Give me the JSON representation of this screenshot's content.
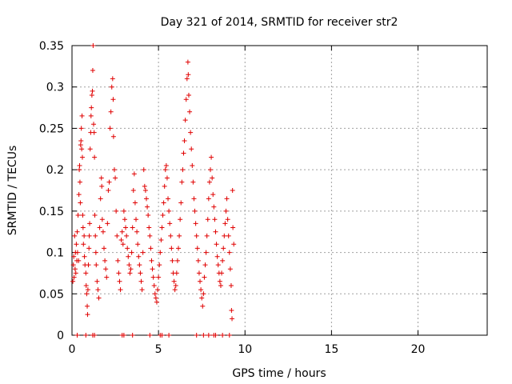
{
  "chart_data": {
    "type": "scatter",
    "title": "Day 321 of 2014, SRMTID for receiver str2",
    "xlabel": "GPS time / hours",
    "ylabel": "SRMTID / TECUs",
    "xlim": [
      0,
      24
    ],
    "ylim": [
      0,
      0.35
    ],
    "xticks": [
      0,
      5,
      10,
      15,
      20
    ],
    "yticks": [
      0,
      0.05,
      0.1,
      0.15,
      0.2,
      0.25,
      0.3,
      0.35
    ],
    "grid": true,
    "marker": "+",
    "color": "#e00000",
    "series": [
      {
        "points": [
          [
            0.05,
            0.065
          ],
          [
            0.08,
            0.085
          ],
          [
            0.1,
            0.095
          ],
          [
            0.12,
            0.07
          ],
          [
            0.15,
            0.12
          ],
          [
            0.18,
            0.08
          ],
          [
            0.2,
            0.1
          ],
          [
            0.22,
            0.075
          ],
          [
            0.25,
            0.11
          ],
          [
            0.28,
            0.09
          ],
          [
            0.3,
            0.125
          ],
          [
            0.32,
            0.1
          ],
          [
            0.35,
            0.145
          ],
          [
            0.38,
            0.09
          ],
          [
            0.4,
            0.17
          ],
          [
            0.42,
            0.2
          ],
          [
            0.44,
            0.205
          ],
          [
            0.46,
            0.185
          ],
          [
            0.48,
            0.16
          ],
          [
            0.5,
            0.23
          ],
          [
            0.52,
            0.235
          ],
          [
            0.54,
            0.25
          ],
          [
            0.56,
            0.225
          ],
          [
            0.58,
            0.265
          ],
          [
            0.6,
            0.215
          ],
          [
            0.62,
            0.145
          ],
          [
            0.64,
            0.13
          ],
          [
            0.66,
            0.11
          ],
          [
            0.7,
            0.12
          ],
          [
            0.72,
            0.095
          ],
          [
            0.75,
            0.085
          ],
          [
            0.8,
            0.075
          ],
          [
            0.82,
            0.06
          ],
          [
            0.85,
            0.05
          ],
          [
            0.88,
            0.035
          ],
          [
            0.9,
            0.025
          ],
          [
            0.92,
            0.055
          ],
          [
            0.95,
            0.085
          ],
          [
            0.98,
            0.105
          ],
          [
            1.0,
            0.12
          ],
          [
            1.02,
            0.135
          ],
          [
            1.05,
            0.225
          ],
          [
            1.08,
            0.245
          ],
          [
            1.1,
            0.265
          ],
          [
            1.12,
            0.275
          ],
          [
            1.15,
            0.29
          ],
          [
            1.18,
            0.295
          ],
          [
            1.2,
            0.32
          ],
          [
            1.22,
            0.35
          ],
          [
            1.25,
            0.255
          ],
          [
            1.28,
            0.245
          ],
          [
            1.3,
            0.215
          ],
          [
            1.32,
            0.145
          ],
          [
            1.35,
            0.12
          ],
          [
            1.38,
            0.1
          ],
          [
            1.4,
            0.085
          ],
          [
            1.45,
            0.065
          ],
          [
            1.5,
            0.055
          ],
          [
            1.55,
            0.045
          ],
          [
            1.6,
            0.13
          ],
          [
            1.65,
            0.165
          ],
          [
            1.7,
            0.19
          ],
          [
            1.72,
            0.18
          ],
          [
            1.75,
            0.14
          ],
          [
            1.8,
            0.125
          ],
          [
            1.85,
            0.105
          ],
          [
            1.9,
            0.09
          ],
          [
            1.95,
            0.08
          ],
          [
            2.0,
            0.07
          ],
          [
            2.05,
            0.135
          ],
          [
            2.1,
            0.175
          ],
          [
            2.15,
            0.185
          ],
          [
            2.2,
            0.25
          ],
          [
            2.25,
            0.27
          ],
          [
            2.3,
            0.3
          ],
          [
            2.35,
            0.31
          ],
          [
            2.38,
            0.285
          ],
          [
            2.4,
            0.24
          ],
          [
            2.45,
            0.2
          ],
          [
            2.5,
            0.19
          ],
          [
            2.55,
            0.15
          ],
          [
            2.6,
            0.12
          ],
          [
            2.65,
            0.09
          ],
          [
            2.7,
            0.075
          ],
          [
            2.75,
            0.065
          ],
          [
            2.8,
            0.055
          ],
          [
            2.85,
            0.115
          ],
          [
            2.9,
            0.125
          ],
          [
            2.95,
            0.11
          ],
          [
            3.0,
            0.15
          ],
          [
            3.05,
            0.14
          ],
          [
            3.1,
            0.13
          ],
          [
            3.15,
            0.12
          ],
          [
            3.2,
            0.105
          ],
          [
            3.25,
            0.095
          ],
          [
            3.3,
            0.085
          ],
          [
            3.35,
            0.075
          ],
          [
            3.4,
            0.08
          ],
          [
            3.45,
            0.1
          ],
          [
            3.5,
            0.13
          ],
          [
            3.55,
            0.175
          ],
          [
            3.6,
            0.195
          ],
          [
            3.65,
            0.16
          ],
          [
            3.7,
            0.14
          ],
          [
            3.75,
            0.125
          ],
          [
            3.8,
            0.11
          ],
          [
            3.85,
            0.095
          ],
          [
            3.9,
            0.085
          ],
          [
            3.95,
            0.075
          ],
          [
            4.0,
            0.065
          ],
          [
            4.05,
            0.055
          ],
          [
            4.1,
            0.1
          ],
          [
            4.15,
            0.2
          ],
          [
            4.2,
            0.18
          ],
          [
            4.25,
            0.175
          ],
          [
            4.3,
            0.165
          ],
          [
            4.35,
            0.155
          ],
          [
            4.4,
            0.145
          ],
          [
            4.45,
            0.13
          ],
          [
            4.5,
            0.12
          ],
          [
            4.55,
            0.105
          ],
          [
            4.6,
            0.09
          ],
          [
            4.65,
            0.08
          ],
          [
            4.7,
            0.07
          ],
          [
            4.75,
            0.06
          ],
          [
            4.8,
            0.05
          ],
          [
            4.85,
            0.045
          ],
          [
            4.9,
            0.04
          ],
          [
            4.95,
            0.055
          ],
          [
            5.0,
            0.07
          ],
          [
            5.05,
            0.085
          ],
          [
            5.1,
            0.1
          ],
          [
            5.15,
            0.115
          ],
          [
            5.2,
            0.13
          ],
          [
            5.25,
            0.145
          ],
          [
            5.3,
            0.16
          ],
          [
            5.35,
            0.18
          ],
          [
            5.4,
            0.2
          ],
          [
            5.45,
            0.205
          ],
          [
            5.5,
            0.19
          ],
          [
            5.55,
            0.165
          ],
          [
            5.6,
            0.15
          ],
          [
            5.65,
            0.135
          ],
          [
            5.7,
            0.12
          ],
          [
            5.75,
            0.105
          ],
          [
            5.8,
            0.09
          ],
          [
            5.85,
            0.075
          ],
          [
            5.9,
            0.065
          ],
          [
            5.95,
            0.055
          ],
          [
            6.0,
            0.06
          ],
          [
            6.05,
            0.075
          ],
          [
            6.1,
            0.09
          ],
          [
            6.15,
            0.105
          ],
          [
            6.2,
            0.12
          ],
          [
            6.25,
            0.14
          ],
          [
            6.3,
            0.16
          ],
          [
            6.35,
            0.185
          ],
          [
            6.4,
            0.2
          ],
          [
            6.45,
            0.22
          ],
          [
            6.5,
            0.235
          ],
          [
            6.55,
            0.26
          ],
          [
            6.6,
            0.285
          ],
          [
            6.65,
            0.31
          ],
          [
            6.7,
            0.33
          ],
          [
            6.72,
            0.315
          ],
          [
            6.75,
            0.29
          ],
          [
            6.8,
            0.27
          ],
          [
            6.85,
            0.245
          ],
          [
            6.9,
            0.225
          ],
          [
            6.95,
            0.205
          ],
          [
            7.0,
            0.185
          ],
          [
            7.05,
            0.165
          ],
          [
            7.1,
            0.15
          ],
          [
            7.15,
            0.135
          ],
          [
            7.2,
            0.12
          ],
          [
            7.25,
            0.105
          ],
          [
            7.3,
            0.09
          ],
          [
            7.35,
            0.075
          ],
          [
            7.4,
            0.065
          ],
          [
            7.45,
            0.055
          ],
          [
            7.5,
            0.045
          ],
          [
            7.55,
            0.035
          ],
          [
            7.6,
            0.05
          ],
          [
            7.65,
            0.07
          ],
          [
            7.7,
            0.085
          ],
          [
            7.75,
            0.1
          ],
          [
            7.8,
            0.12
          ],
          [
            7.85,
            0.14
          ],
          [
            7.9,
            0.165
          ],
          [
            7.95,
            0.185
          ],
          [
            8.0,
            0.2
          ],
          [
            8.05,
            0.215
          ],
          [
            8.1,
            0.19
          ],
          [
            8.15,
            0.17
          ],
          [
            8.2,
            0.155
          ],
          [
            8.25,
            0.14
          ],
          [
            8.3,
            0.125
          ],
          [
            8.35,
            0.11
          ],
          [
            8.4,
            0.095
          ],
          [
            8.45,
            0.085
          ],
          [
            8.5,
            0.075
          ],
          [
            8.55,
            0.065
          ],
          [
            8.6,
            0.06
          ],
          [
            8.65,
            0.075
          ],
          [
            8.7,
            0.09
          ],
          [
            8.75,
            0.105
          ],
          [
            8.8,
            0.12
          ],
          [
            8.85,
            0.135
          ],
          [
            8.9,
            0.15
          ],
          [
            8.95,
            0.165
          ],
          [
            9.0,
            0.14
          ],
          [
            9.05,
            0.12
          ],
          [
            9.1,
            0.1
          ],
          [
            9.15,
            0.08
          ],
          [
            9.2,
            0.06
          ],
          [
            9.22,
            0.03
          ],
          [
            9.25,
            0.02
          ],
          [
            9.28,
            0.175
          ],
          [
            9.3,
            0.13
          ],
          [
            9.35,
            0.11
          ],
          [
            0.3,
            0.0
          ],
          [
            0.8,
            0.0
          ],
          [
            1.2,
            0.0
          ],
          [
            1.3,
            0.0
          ],
          [
            2.9,
            0.0
          ],
          [
            3.0,
            0.0
          ],
          [
            3.5,
            0.0
          ],
          [
            4.5,
            0.0
          ],
          [
            5.1,
            0.0
          ],
          [
            5.2,
            0.0
          ],
          [
            5.6,
            0.0
          ],
          [
            7.2,
            0.0
          ],
          [
            7.6,
            0.0
          ],
          [
            7.9,
            0.0
          ],
          [
            8.2,
            0.0
          ],
          [
            8.3,
            0.0
          ],
          [
            8.7,
            0.0
          ],
          [
            9.1,
            0.0
          ]
        ]
      }
    ]
  }
}
